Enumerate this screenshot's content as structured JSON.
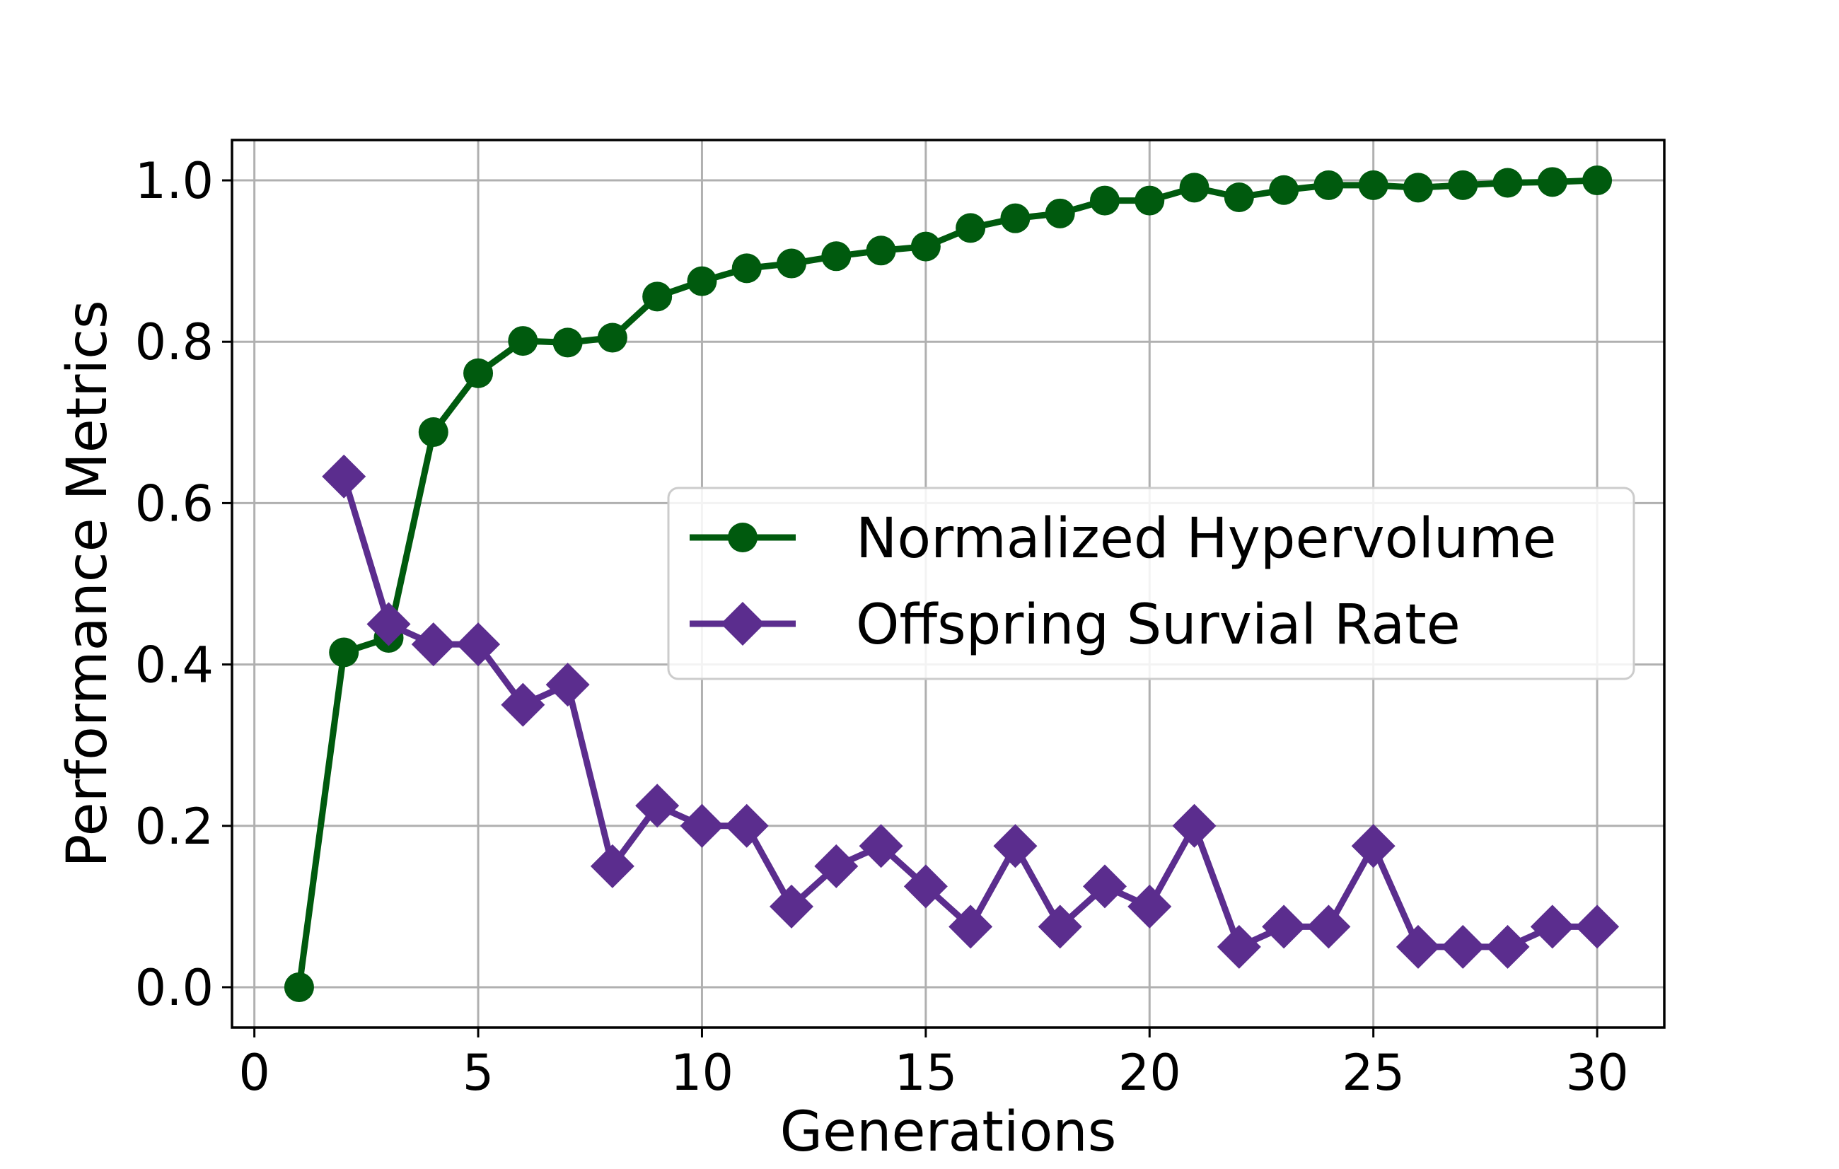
{
  "chart_data": {
    "type": "line",
    "title": "",
    "xlabel": "Generations",
    "ylabel": "Performance Metrics",
    "xlim": [
      -0.5,
      31.5
    ],
    "ylim": [
      -0.05,
      1.05
    ],
    "xticks": [
      0,
      5,
      10,
      15,
      20,
      25,
      30
    ],
    "xtick_labels": [
      "0",
      "5",
      "10",
      "15",
      "20",
      "25",
      "30"
    ],
    "yticks": [
      0.0,
      0.2,
      0.4,
      0.6,
      0.8,
      1.0
    ],
    "ytick_labels": [
      "0.0",
      "0.2",
      "0.4",
      "0.6",
      "0.8",
      "1.0"
    ],
    "grid": true,
    "legend_position": "center-right",
    "series": [
      {
        "name": "Normalized Hypervolume",
        "color": "#005a0e",
        "marker": "circle",
        "x": [
          1,
          2,
          3,
          4,
          5,
          6,
          7,
          8,
          9,
          10,
          11,
          12,
          13,
          14,
          15,
          16,
          17,
          18,
          19,
          20,
          21,
          22,
          23,
          24,
          25,
          26,
          27,
          28,
          29,
          30
        ],
        "values": [
          0.0,
          0.415,
          0.433,
          0.688,
          0.761,
          0.801,
          0.799,
          0.805,
          0.856,
          0.875,
          0.891,
          0.897,
          0.906,
          0.913,
          0.918,
          0.941,
          0.953,
          0.959,
          0.975,
          0.975,
          0.991,
          0.979,
          0.988,
          0.994,
          0.994,
          0.991,
          0.994,
          0.997,
          0.998,
          1.0
        ]
      },
      {
        "name": "Offspring Survial Rate",
        "color": "#5b2d8e",
        "marker": "diamond",
        "x": [
          2,
          3,
          4,
          5,
          6,
          7,
          8,
          9,
          10,
          11,
          12,
          13,
          14,
          15,
          16,
          17,
          18,
          19,
          20,
          21,
          22,
          23,
          24,
          25,
          26,
          27,
          28,
          29,
          30
        ],
        "values": [
          0.633,
          0.45,
          0.425,
          0.425,
          0.35,
          0.375,
          0.15,
          0.225,
          0.2,
          0.2,
          0.1,
          0.15,
          0.175,
          0.125,
          0.075,
          0.175,
          0.075,
          0.125,
          0.1,
          0.2,
          0.05,
          0.075,
          0.075,
          0.175,
          0.05,
          0.05,
          0.05,
          0.075,
          0.075
        ]
      }
    ]
  }
}
